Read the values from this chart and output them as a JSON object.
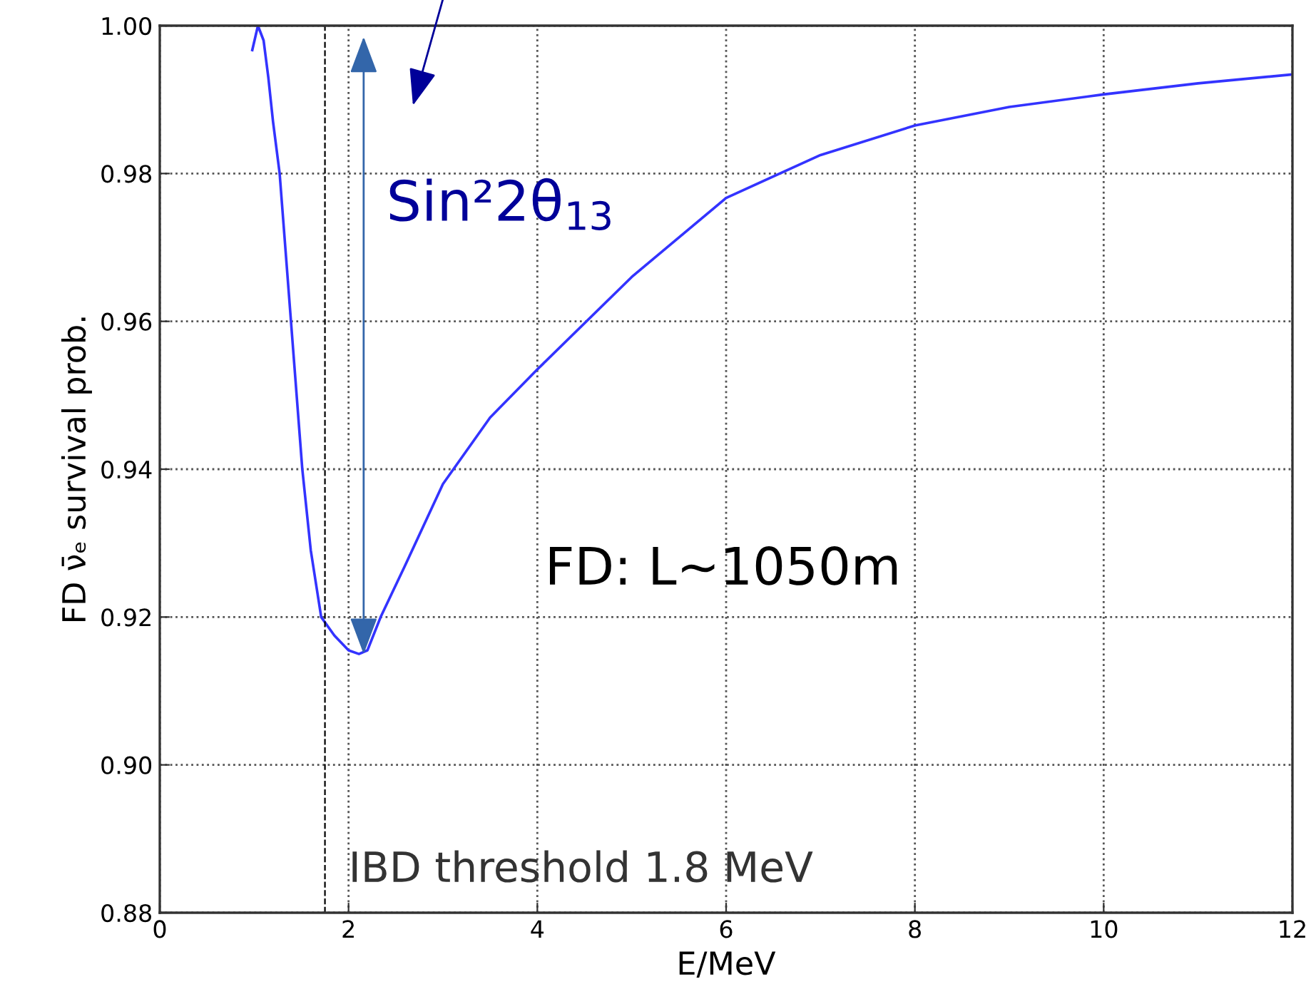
{
  "chart_data": {
    "type": "line",
    "xlabel": "E/MeV",
    "ylabel": "FD ν̄ₑ survival prob.",
    "x": [
      0.98,
      1.04,
      1.1,
      1.15,
      1.2,
      1.27,
      1.39,
      1.51,
      1.6,
      1.71,
      1.85,
      2.0,
      2.11,
      2.2,
      2.34,
      2.6,
      3.0,
      3.5,
      4.0,
      5.0,
      6.0,
      7.0,
      8.0,
      9.0,
      10.0,
      11.0,
      12.0
    ],
    "series": [
      {
        "color": "#3333ff",
        "values": [
          0.9967,
          1.0,
          0.998,
          0.993,
          0.987,
          0.98,
          0.96,
          0.94,
          0.929,
          0.92,
          0.9175,
          0.9155,
          0.915,
          0.9155,
          0.92,
          0.927,
          0.938,
          0.947,
          0.9535,
          0.966,
          0.9767,
          0.9825,
          0.9865,
          0.989,
          0.9907,
          0.9922,
          0.9934
        ]
      }
    ],
    "xlim": [
      0,
      12
    ],
    "ylim": [
      0.88,
      1.0
    ],
    "xticks": [
      0,
      2,
      4,
      6,
      8,
      10,
      12
    ],
    "yticks": [
      {
        "value": 0.88,
        "label": "0.88"
      },
      {
        "value": 0.9,
        "label": "0.90"
      },
      {
        "value": 0.92,
        "label": "0.92"
      },
      {
        "value": 0.94,
        "label": "0.94"
      },
      {
        "value": 0.96,
        "label": "0.96"
      },
      {
        "value": 0.98,
        "label": "0.98"
      },
      {
        "value": 1.0,
        "label": "1.00"
      }
    ],
    "grid": true,
    "line_style": "solid",
    "marker": "none",
    "ref_lines": [
      {
        "axis": "x",
        "value": 1.75,
        "label": "IBD threshold 1.8 MeV",
        "color": "#000000",
        "line_style": "dashed"
      }
    ],
    "annotations": [
      "Sin²2θ$_{13}$",
      "FD: L~1050m"
    ]
  }
}
